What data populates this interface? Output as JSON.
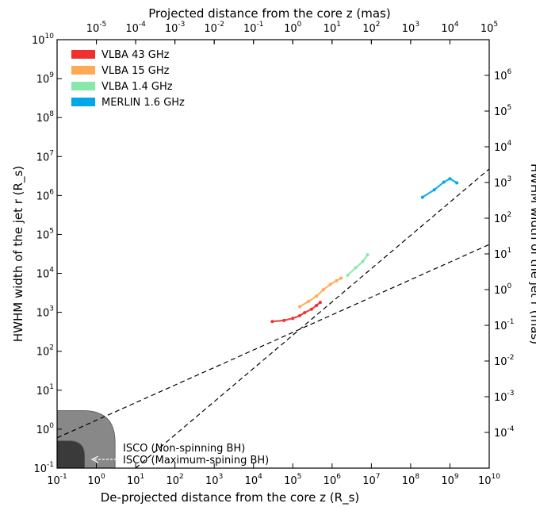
{
  "chart_data": {
    "type": "line",
    "scale": "log-log",
    "xlabel": "De-projected distance from the core z (R_s)",
    "ylabel": "HWHM width of the jet r (R_s)",
    "top_xlabel": "Projected distance from the core z (mas)",
    "right_ylabel": "HWHM width of the jet r (mas)",
    "xlim": [
      0.1,
      10000000000
    ],
    "ylim": [
      0.1,
      10000000000
    ],
    "top_xlim": [
      1e-06,
      100000
    ],
    "right_ylim": [
      1e-05,
      10000000
    ],
    "x_ticks": [
      "10^-1",
      "10^0",
      "10^1",
      "10^2",
      "10^3",
      "10^4",
      "10^5",
      "10^6",
      "10^7",
      "10^8",
      "10^9",
      "10^10"
    ],
    "y_ticks": [
      "10^-1",
      "10^0",
      "10^1",
      "10^2",
      "10^3",
      "10^4",
      "10^5",
      "10^6",
      "10^7",
      "10^8",
      "10^9",
      "10^10"
    ],
    "top_ticks": [
      "10^-5",
      "10^-4",
      "10^-3",
      "10^-2",
      "10^-1",
      "10^0",
      "10^1",
      "10^2",
      "10^3",
      "10^4",
      "10^5"
    ],
    "right_ticks": [
      "10^-4",
      "10^-3",
      "10^-2",
      "10^-1",
      "10^0",
      "10^1",
      "10^2",
      "10^3",
      "10^4",
      "10^5",
      "10^6"
    ],
    "series": [
      {
        "name": "VLBA 43 GHz",
        "color": "#f03030",
        "x": [
          30000,
          60000,
          100000,
          150000,
          200000,
          300000,
          400000,
          500000
        ],
        "y": [
          580,
          620,
          700,
          820,
          980,
          1200,
          1500,
          1800
        ]
      },
      {
        "name": "VLBA 15 GHz",
        "color": "#ffaa55",
        "x": [
          150000,
          250000,
          400000,
          600000,
          900000,
          1300000,
          1700000
        ],
        "y": [
          1400,
          1900,
          2600,
          3800,
          5200,
          6500,
          7500
        ]
      },
      {
        "name": "VLBA 1.4 GHz",
        "color": "#88e8aa",
        "x": [
          2500000,
          4000000,
          6000000,
          8000000
        ],
        "y": [
          9000,
          14000,
          20000,
          30000
        ]
      },
      {
        "name": "MERLIN 1.6 GHz",
        "color": "#00a8e8",
        "x": [
          200000000,
          400000000,
          700000000,
          1000000000,
          1500000000
        ],
        "y": [
          900000,
          1400000,
          2200000,
          2700000,
          2100000
        ]
      }
    ],
    "fits": [
      {
        "style": "dashed",
        "x": [
          0.1,
          10000000000
        ],
        "y": [
          0.6,
          55000
        ]
      },
      {
        "style": "dashed",
        "x": [
          10,
          10000000000
        ],
        "y": [
          0.1,
          4800000
        ]
      }
    ],
    "regions": [
      {
        "label": "ISCO (Non-spinning BH)",
        "x_max": 3,
        "y_max": 3
      },
      {
        "label": "ISCO (Maximum-spining BH)",
        "x_max": 0.5,
        "y_max": 0.5
      }
    ],
    "legend": {
      "placement": "top-left"
    }
  }
}
